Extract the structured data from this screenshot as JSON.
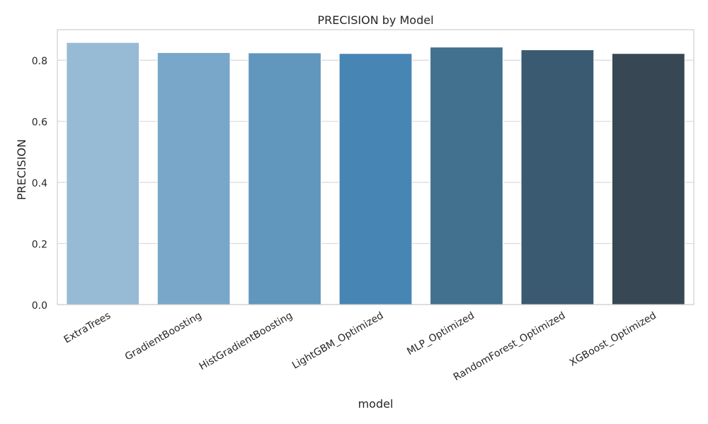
{
  "chart_data": {
    "type": "bar",
    "title": "PRECISION by Model",
    "xlabel": "model",
    "ylabel": "PRECISION",
    "categories": [
      "ExtraTrees",
      "GradientBoosting",
      "HistGradientBoosting",
      "LightGBM_Optimized",
      "MLP_Optimized",
      "RandomForest_Optimized",
      "XGBoost_Optimized"
    ],
    "values": [
      0.858,
      0.825,
      0.824,
      0.822,
      0.843,
      0.834,
      0.822
    ],
    "ylim": [
      0,
      0.9
    ],
    "yticks": [
      0.0,
      0.2,
      0.4,
      0.6,
      0.8
    ],
    "ytick_labels": [
      "0.0",
      "0.2",
      "0.4",
      "0.6",
      "0.8"
    ],
    "grid": "horizontal",
    "colors": [
      "#97bad5",
      "#78a7c9",
      "#6196bd",
      "#4785b4",
      "#42708f",
      "#3a5a71",
      "#374753"
    ]
  }
}
